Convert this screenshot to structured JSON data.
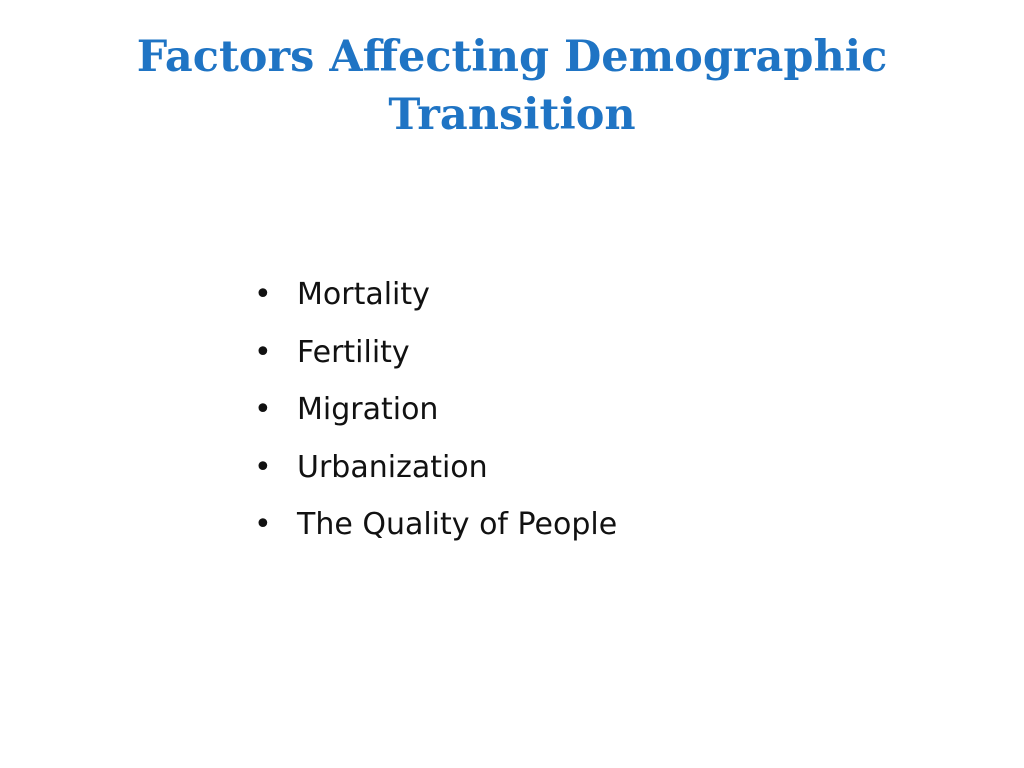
{
  "slide": {
    "title": "Factors Affecting Demographic Transition",
    "bullet_symbol": "•",
    "bullets": [
      {
        "label": "Mortality"
      },
      {
        "label": "Fertility"
      },
      {
        "label": "Migration"
      },
      {
        "label": "Urbanization"
      },
      {
        "label": "The Quality of People"
      }
    ]
  },
  "colors": {
    "title": "#1f74c4",
    "text": "#111111",
    "background": "#ffffff"
  }
}
